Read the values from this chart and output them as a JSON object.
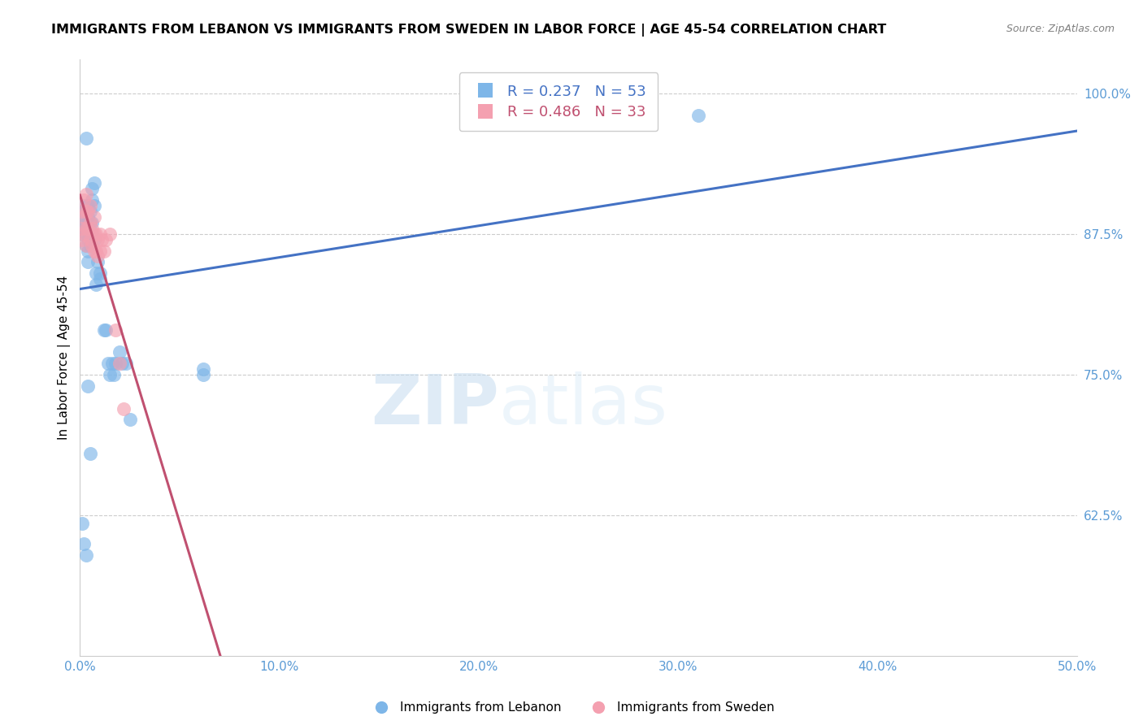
{
  "title": "IMMIGRANTS FROM LEBANON VS IMMIGRANTS FROM SWEDEN IN LABOR FORCE | AGE 45-54 CORRELATION CHART",
  "source": "Source: ZipAtlas.com",
  "ylabel": "In Labor Force | Age 45-54",
  "xlim": [
    0.0,
    0.5
  ],
  "ylim": [
    0.5,
    1.03
  ],
  "xticks": [
    0.0,
    0.1,
    0.2,
    0.3,
    0.4,
    0.5
  ],
  "ytick_vals": [
    0.625,
    0.75,
    0.875,
    1.0
  ],
  "lebanon_color": "#7EB6E8",
  "sweden_color": "#F4A0B0",
  "lebanon_line_color": "#4472C4",
  "sweden_line_color": "#C05070",
  "lebanon_R": 0.237,
  "lebanon_N": 53,
  "sweden_R": 0.486,
  "sweden_N": 33,
  "legend_label_lebanon": "Immigrants from Lebanon",
  "legend_label_sweden": "Immigrants from Sweden",
  "watermark_part1": "ZIP",
  "watermark_part2": "atlas",
  "background_color": "#ffffff",
  "axis_color": "#5B9BD5",
  "grid_color": "#CCCCCC",
  "lebanon_x": [
    0.002,
    0.003,
    0.001,
    0.001,
    0.001,
    0.002,
    0.002,
    0.002,
    0.003,
    0.003,
    0.003,
    0.003,
    0.004,
    0.004,
    0.004,
    0.004,
    0.004,
    0.004,
    0.005,
    0.005,
    0.005,
    0.005,
    0.006,
    0.006,
    0.006,
    0.006,
    0.007,
    0.007,
    0.007,
    0.008,
    0.008,
    0.009,
    0.01,
    0.01,
    0.012,
    0.013,
    0.014,
    0.015,
    0.016,
    0.017,
    0.018,
    0.02,
    0.021,
    0.023,
    0.025,
    0.062,
    0.062,
    0.31,
    0.001,
    0.002,
    0.003,
    0.004,
    0.005
  ],
  "lebanon_y": [
    0.895,
    0.96,
    0.895,
    0.885,
    0.875,
    0.9,
    0.89,
    0.88,
    0.895,
    0.885,
    0.875,
    0.865,
    0.9,
    0.89,
    0.88,
    0.87,
    0.86,
    0.85,
    0.895,
    0.885,
    0.875,
    0.865,
    0.915,
    0.905,
    0.885,
    0.875,
    0.92,
    0.9,
    0.87,
    0.84,
    0.83,
    0.85,
    0.84,
    0.835,
    0.79,
    0.79,
    0.76,
    0.75,
    0.76,
    0.75,
    0.76,
    0.77,
    0.76,
    0.76,
    0.71,
    0.75,
    0.755,
    0.98,
    0.618,
    0.6,
    0.59,
    0.74,
    0.68
  ],
  "sweden_x": [
    0.001,
    0.001,
    0.001,
    0.002,
    0.002,
    0.002,
    0.003,
    0.003,
    0.003,
    0.003,
    0.004,
    0.004,
    0.005,
    0.005,
    0.005,
    0.006,
    0.006,
    0.007,
    0.007,
    0.007,
    0.008,
    0.008,
    0.009,
    0.009,
    0.01,
    0.01,
    0.011,
    0.012,
    0.013,
    0.015,
    0.018,
    0.02,
    0.022
  ],
  "sweden_y": [
    0.895,
    0.88,
    0.87,
    0.905,
    0.89,
    0.875,
    0.91,
    0.895,
    0.88,
    0.865,
    0.895,
    0.88,
    0.9,
    0.885,
    0.87,
    0.88,
    0.865,
    0.89,
    0.875,
    0.86,
    0.875,
    0.86,
    0.87,
    0.855,
    0.875,
    0.86,
    0.87,
    0.86,
    0.87,
    0.875,
    0.79,
    0.76,
    0.72
  ]
}
